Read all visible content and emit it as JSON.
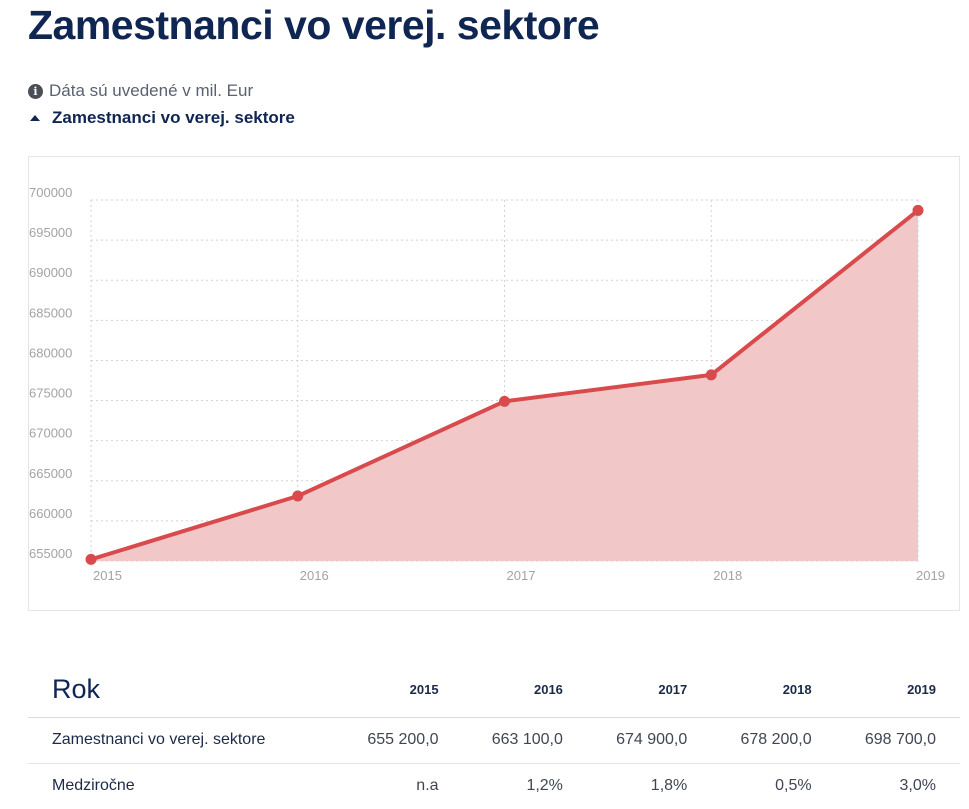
{
  "page": {
    "title": "Zamestnanci vo verej. sektore",
    "note": "Dáta sú uvedené v mil. Eur",
    "series_toggle_label": "Zamestnanci vo verej. sektore"
  },
  "colors": {
    "line": "#d94a4d",
    "area": "#f2c7c8",
    "title": "#0f2552",
    "grid": "#d2d2d2"
  },
  "icons": {
    "note": "info-circle-icon",
    "toggle": "caret-up-icon"
  },
  "chart_data": {
    "type": "area",
    "title": "",
    "xlabel": "",
    "ylabel": "",
    "x": [
      "2015",
      "2016",
      "2017",
      "2018",
      "2019"
    ],
    "series": [
      {
        "name": "Zamestnanci vo verej. sektore",
        "values": [
          655200,
          663100,
          674900,
          678200,
          698700
        ]
      }
    ],
    "yticks": [
      "700000",
      "695000",
      "690000",
      "685000",
      "680000",
      "675000",
      "670000",
      "665000",
      "660000",
      "655000"
    ],
    "ylim": [
      655000,
      700000
    ],
    "grid": true,
    "grid_style": "dotted",
    "legend": "none"
  },
  "table": {
    "header_label": "Rok",
    "years": [
      "2015",
      "2016",
      "2017",
      "2018",
      "2019"
    ],
    "rows": [
      {
        "label": "Zamestnanci vo verej. sektore",
        "values": [
          "655 200,0",
          "663 100,0",
          "674 900,0",
          "678 200,0",
          "698 700,0"
        ]
      },
      {
        "label": "Medziročne",
        "values": [
          "n.a",
          "1,2%",
          "1,8%",
          "0,5%",
          "3,0%"
        ]
      }
    ]
  }
}
